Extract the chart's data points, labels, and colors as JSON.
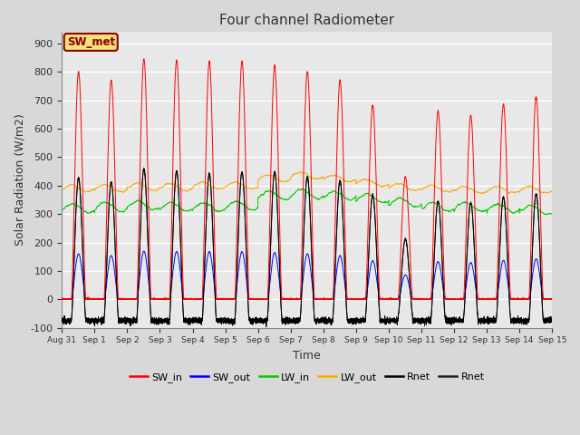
{
  "title": "Four channel Radiometer",
  "xlabel": "Time",
  "ylabel": "Solar Radiation (W/m2)",
  "ylim": [
    -100,
    940
  ],
  "xlim": [
    0,
    15
  ],
  "fig_bg": "#d8d8d8",
  "axes_bg": "#e8e8e8",
  "grid_color": "#ffffff",
  "annotation_text": "SW_met",
  "annotation_bg": "#f5e07a",
  "annotation_border": "#8b0000",
  "annotation_text_color": "#8b0000",
  "xtick_labels": [
    "Aug 31",
    "Sep 1",
    "Sep 2",
    "Sep 3",
    "Sep 4",
    "Sep 5",
    "Sep 6",
    "Sep 7",
    "Sep 8",
    "Sep 9",
    "Sep 10",
    "Sep 11",
    "Sep 12",
    "Sep 13",
    "Sep 14",
    "Sep 15"
  ],
  "ytick_values": [
    -100,
    0,
    100,
    200,
    300,
    400,
    500,
    600,
    700,
    800,
    900
  ],
  "colors": {
    "SW_in": "#ff0000",
    "SW_out": "#0000ff",
    "LW_in": "#00cc00",
    "LW_out": "#ffa500",
    "Rnet_black": "#000000",
    "Rnet_dark": "#202020"
  },
  "legend_entries": [
    {
      "label": "SW_in",
      "color": "#ff0000"
    },
    {
      "label": "SW_out",
      "color": "#0000ff"
    },
    {
      "label": "LW_in",
      "color": "#00cc00"
    },
    {
      "label": "LW_out",
      "color": "#ffa500"
    },
    {
      "label": "Rnet",
      "color": "#000000"
    },
    {
      "label": "Rnet",
      "color": "#202020"
    }
  ],
  "peaks_sw_in": [
    800,
    770,
    845,
    840,
    835,
    835,
    820,
    800,
    770,
    680,
    430,
    660,
    645,
    685,
    710
  ],
  "lw_in_bases": [
    320,
    325,
    330,
    325,
    325,
    330,
    365,
    370,
    365,
    355,
    340,
    325,
    325,
    320,
    315
  ],
  "lw_out_bases": [
    390,
    390,
    395,
    395,
    400,
    400,
    425,
    435,
    425,
    410,
    395,
    390,
    385,
    385,
    385
  ],
  "rnet_night": -75,
  "sw_out_ratio": 0.2
}
